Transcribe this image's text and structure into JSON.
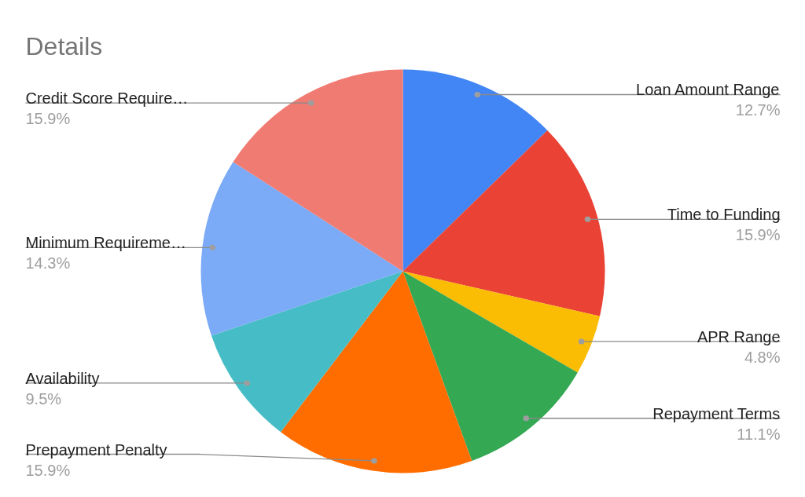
{
  "chart_data": {
    "type": "pie",
    "title": "Details",
    "categories": [
      "Loan Amount Range",
      "Time to Funding",
      "APR Range",
      "Repayment Terms",
      "Prepayment Penalty",
      "Availability",
      "Minimum Requireme…",
      "Credit Score Require…"
    ],
    "values": [
      12.7,
      15.9,
      4.8,
      11.1,
      15.9,
      9.5,
      14.3,
      15.9
    ],
    "colors": [
      "#4285f4",
      "#ea4335",
      "#fbbc04",
      "#34a853",
      "#ff6d01",
      "#46bdc6",
      "#7baaf7",
      "#f07b72"
    ],
    "value_labels": [
      "12.7%",
      "15.9%",
      "4.8%",
      "11.1%",
      "15.9%",
      "9.5%",
      "14.3%",
      "15.9%"
    ]
  }
}
